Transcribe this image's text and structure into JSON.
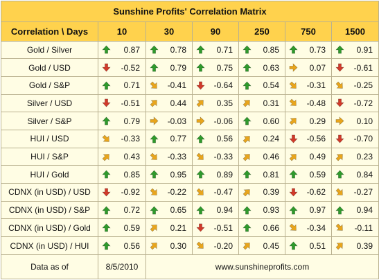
{
  "title": "Sunshine Profits' Correlation Matrix",
  "header": {
    "corner": "Correlation \\ Days",
    "periods": [
      "10",
      "30",
      "90",
      "250",
      "750",
      "1500"
    ]
  },
  "colors": {
    "up": "#2f9a2c",
    "down": "#d23a2a",
    "diag": "#e8a51c",
    "flat": "#e8a51c"
  },
  "rows": [
    {
      "label": "Gold / Silver",
      "cells": [
        {
          "v": "0.87",
          "icon": "arrow-up-icon"
        },
        {
          "v": "0.78",
          "icon": "arrow-up-icon"
        },
        {
          "v": "0.71",
          "icon": "arrow-up-icon"
        },
        {
          "v": "0.85",
          "icon": "arrow-up-icon"
        },
        {
          "v": "0.73",
          "icon": "arrow-up-icon"
        },
        {
          "v": "0.91",
          "icon": "arrow-up-icon"
        }
      ]
    },
    {
      "label": "Gold / USD",
      "cells": [
        {
          "v": "-0.52",
          "icon": "arrow-down-icon"
        },
        {
          "v": "0.79",
          "icon": "arrow-up-icon"
        },
        {
          "v": "0.75",
          "icon": "arrow-up-icon"
        },
        {
          "v": "0.63",
          "icon": "arrow-up-icon"
        },
        {
          "v": "0.07",
          "icon": "arrow-right-icon"
        },
        {
          "v": "-0.61",
          "icon": "arrow-down-icon"
        }
      ]
    },
    {
      "label": "Gold / S&P",
      "cells": [
        {
          "v": "0.71",
          "icon": "arrow-up-icon"
        },
        {
          "v": "-0.41",
          "icon": "arrow-down-right-icon"
        },
        {
          "v": "-0.64",
          "icon": "arrow-down-icon"
        },
        {
          "v": "0.54",
          "icon": "arrow-up-icon"
        },
        {
          "v": "-0.31",
          "icon": "arrow-down-right-icon"
        },
        {
          "v": "-0.25",
          "icon": "arrow-down-right-icon"
        }
      ]
    },
    {
      "label": "Silver / USD",
      "cells": [
        {
          "v": "-0.51",
          "icon": "arrow-down-icon"
        },
        {
          "v": "0.44",
          "icon": "arrow-up-right-icon"
        },
        {
          "v": "0.35",
          "icon": "arrow-up-right-icon"
        },
        {
          "v": "0.31",
          "icon": "arrow-up-right-icon"
        },
        {
          "v": "-0.48",
          "icon": "arrow-down-right-icon"
        },
        {
          "v": "-0.72",
          "icon": "arrow-down-icon"
        }
      ]
    },
    {
      "label": "Silver / S&P",
      "cells": [
        {
          "v": "0.79",
          "icon": "arrow-up-icon"
        },
        {
          "v": "-0.03",
          "icon": "arrow-right-icon"
        },
        {
          "v": "-0.06",
          "icon": "arrow-right-icon"
        },
        {
          "v": "0.60",
          "icon": "arrow-up-icon"
        },
        {
          "v": "0.29",
          "icon": "arrow-up-right-icon"
        },
        {
          "v": "0.10",
          "icon": "arrow-right-icon"
        }
      ]
    },
    {
      "label": "HUI / USD",
      "cells": [
        {
          "v": "-0.33",
          "icon": "arrow-down-right-icon"
        },
        {
          "v": "0.77",
          "icon": "arrow-up-icon"
        },
        {
          "v": "0.56",
          "icon": "arrow-up-icon"
        },
        {
          "v": "0.24",
          "icon": "arrow-up-right-icon"
        },
        {
          "v": "-0.56",
          "icon": "arrow-down-icon"
        },
        {
          "v": "-0.70",
          "icon": "arrow-down-icon"
        }
      ]
    },
    {
      "label": "HUI / S&P",
      "cells": [
        {
          "v": "0.43",
          "icon": "arrow-up-right-icon"
        },
        {
          "v": "-0.33",
          "icon": "arrow-down-right-icon"
        },
        {
          "v": "-0.33",
          "icon": "arrow-down-right-icon"
        },
        {
          "v": "0.46",
          "icon": "arrow-up-right-icon"
        },
        {
          "v": "0.49",
          "icon": "arrow-up-right-icon"
        },
        {
          "v": "0.23",
          "icon": "arrow-up-right-icon"
        }
      ]
    },
    {
      "label": "HUI / Gold",
      "cells": [
        {
          "v": "0.85",
          "icon": "arrow-up-icon"
        },
        {
          "v": "0.95",
          "icon": "arrow-up-icon"
        },
        {
          "v": "0.89",
          "icon": "arrow-up-icon"
        },
        {
          "v": "0.81",
          "icon": "arrow-up-icon"
        },
        {
          "v": "0.59",
          "icon": "arrow-up-icon"
        },
        {
          "v": "0.84",
          "icon": "arrow-up-icon"
        }
      ]
    },
    {
      "label": "CDNX (in USD) / USD",
      "cells": [
        {
          "v": "-0.92",
          "icon": "arrow-down-icon"
        },
        {
          "v": "-0.22",
          "icon": "arrow-down-right-icon"
        },
        {
          "v": "-0.47",
          "icon": "arrow-down-right-icon"
        },
        {
          "v": "0.39",
          "icon": "arrow-up-right-icon"
        },
        {
          "v": "-0.62",
          "icon": "arrow-down-icon"
        },
        {
          "v": "-0.27",
          "icon": "arrow-down-right-icon"
        }
      ]
    },
    {
      "label": "CDNX (in USD) / S&P",
      "cells": [
        {
          "v": "0.72",
          "icon": "arrow-up-icon"
        },
        {
          "v": "0.65",
          "icon": "arrow-up-icon"
        },
        {
          "v": "0.94",
          "icon": "arrow-up-icon"
        },
        {
          "v": "0.93",
          "icon": "arrow-up-icon"
        },
        {
          "v": "0.97",
          "icon": "arrow-up-icon"
        },
        {
          "v": "0.94",
          "icon": "arrow-up-icon"
        }
      ]
    },
    {
      "label": "CDNX (in USD) / Gold",
      "cells": [
        {
          "v": "0.59",
          "icon": "arrow-up-icon"
        },
        {
          "v": "0.21",
          "icon": "arrow-up-right-icon"
        },
        {
          "v": "-0.51",
          "icon": "arrow-down-icon"
        },
        {
          "v": "0.66",
          "icon": "arrow-up-icon"
        },
        {
          "v": "-0.34",
          "icon": "arrow-down-right-icon"
        },
        {
          "v": "-0.11",
          "icon": "arrow-down-right-icon"
        }
      ]
    },
    {
      "label": "CDNX (in USD) / HUI",
      "cells": [
        {
          "v": "0.56",
          "icon": "arrow-up-icon"
        },
        {
          "v": "0.30",
          "icon": "arrow-up-right-icon"
        },
        {
          "v": "-0.20",
          "icon": "arrow-down-right-icon"
        },
        {
          "v": "0.45",
          "icon": "arrow-up-right-icon"
        },
        {
          "v": "0.51",
          "icon": "arrow-up-icon"
        },
        {
          "v": "0.39",
          "icon": "arrow-up-right-icon"
        }
      ]
    }
  ],
  "footer": {
    "label": "Data as of",
    "date": "8/5/2010",
    "site": "www.sunshineprofits.com"
  }
}
